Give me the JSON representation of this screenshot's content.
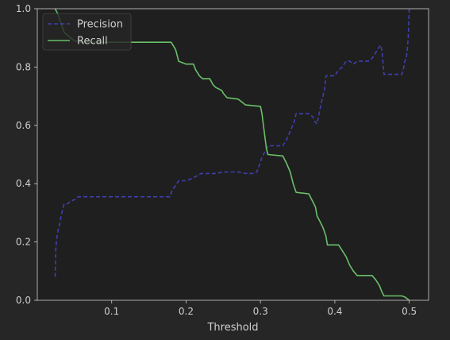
{
  "chart_data": {
    "type": "line",
    "title": "",
    "xlabel": "Threshold",
    "ylabel": "",
    "xlim": [
      0.0,
      0.526
    ],
    "ylim": [
      0.0,
      1.0
    ],
    "xticks": [
      0.1,
      0.2,
      0.3,
      0.4,
      0.5
    ],
    "xtick_labels": [
      "0.1",
      "0.2",
      "0.3",
      "0.4",
      "0.5"
    ],
    "yticks": [
      0.0,
      0.2,
      0.4,
      0.6,
      0.8,
      1.0
    ],
    "ytick_labels": [
      "0.0",
      "0.2",
      "0.4",
      "0.6",
      "0.8",
      "1.0"
    ],
    "grid": false,
    "legend": "upper-left",
    "series": [
      {
        "name": "Precision",
        "color": "#3f3fb2",
        "style": "dashed",
        "points": [
          [
            0.024,
            0.08
          ],
          [
            0.025,
            0.18
          ],
          [
            0.026,
            0.21
          ],
          [
            0.028,
            0.24
          ],
          [
            0.03,
            0.26
          ],
          [
            0.032,
            0.29
          ],
          [
            0.034,
            0.31
          ],
          [
            0.036,
            0.33
          ],
          [
            0.04,
            0.33
          ],
          [
            0.045,
            0.34
          ],
          [
            0.05,
            0.345
          ],
          [
            0.055,
            0.355
          ],
          [
            0.07,
            0.355
          ],
          [
            0.1,
            0.355
          ],
          [
            0.15,
            0.355
          ],
          [
            0.178,
            0.355
          ],
          [
            0.182,
            0.38
          ],
          [
            0.185,
            0.39
          ],
          [
            0.19,
            0.41
          ],
          [
            0.2,
            0.41
          ],
          [
            0.21,
            0.42
          ],
          [
            0.22,
            0.435
          ],
          [
            0.24,
            0.435
          ],
          [
            0.25,
            0.44
          ],
          [
            0.27,
            0.44
          ],
          [
            0.28,
            0.435
          ],
          [
            0.292,
            0.435
          ],
          [
            0.295,
            0.44
          ],
          [
            0.298,
            0.46
          ],
          [
            0.302,
            0.49
          ],
          [
            0.306,
            0.51
          ],
          [
            0.31,
            0.53
          ],
          [
            0.33,
            0.53
          ],
          [
            0.335,
            0.55
          ],
          [
            0.34,
            0.58
          ],
          [
            0.345,
            0.61
          ],
          [
            0.348,
            0.64
          ],
          [
            0.365,
            0.64
          ],
          [
            0.37,
            0.63
          ],
          [
            0.374,
            0.61
          ],
          [
            0.376,
            0.605
          ],
          [
            0.378,
            0.63
          ],
          [
            0.382,
            0.68
          ],
          [
            0.386,
            0.72
          ],
          [
            0.388,
            0.77
          ],
          [
            0.4,
            0.77
          ],
          [
            0.405,
            0.79
          ],
          [
            0.41,
            0.8
          ],
          [
            0.415,
            0.82
          ],
          [
            0.42,
            0.82
          ],
          [
            0.425,
            0.81
          ],
          [
            0.43,
            0.82
          ],
          [
            0.445,
            0.82
          ],
          [
            0.45,
            0.83
          ],
          [
            0.455,
            0.85
          ],
          [
            0.46,
            0.87
          ],
          [
            0.462,
            0.875
          ],
          [
            0.464,
            0.84
          ],
          [
            0.466,
            0.775
          ],
          [
            0.49,
            0.775
          ],
          [
            0.492,
            0.79
          ],
          [
            0.494,
            0.82
          ],
          [
            0.496,
            0.83
          ],
          [
            0.497,
            0.85
          ],
          [
            0.498,
            0.88
          ],
          [
            0.499,
            0.92
          ],
          [
            0.5,
            1.0
          ]
        ]
      },
      {
        "name": "Recall",
        "color": "#6abf69",
        "style": "solid",
        "points": [
          [
            0.024,
            1.0
          ],
          [
            0.028,
            0.98
          ],
          [
            0.032,
            0.95
          ],
          [
            0.036,
            0.92
          ],
          [
            0.04,
            0.91
          ],
          [
            0.045,
            0.9
          ],
          [
            0.05,
            0.89
          ],
          [
            0.06,
            0.885
          ],
          [
            0.1,
            0.885
          ],
          [
            0.15,
            0.885
          ],
          [
            0.18,
            0.885
          ],
          [
            0.186,
            0.86
          ],
          [
            0.19,
            0.82
          ],
          [
            0.2,
            0.81
          ],
          [
            0.21,
            0.81
          ],
          [
            0.213,
            0.79
          ],
          [
            0.218,
            0.77
          ],
          [
            0.222,
            0.76
          ],
          [
            0.232,
            0.76
          ],
          [
            0.236,
            0.74
          ],
          [
            0.24,
            0.73
          ],
          [
            0.248,
            0.72
          ],
          [
            0.25,
            0.71
          ],
          [
            0.255,
            0.695
          ],
          [
            0.27,
            0.69
          ],
          [
            0.275,
            0.68
          ],
          [
            0.28,
            0.67
          ],
          [
            0.3,
            0.665
          ],
          [
            0.302,
            0.64
          ],
          [
            0.304,
            0.6
          ],
          [
            0.306,
            0.56
          ],
          [
            0.308,
            0.52
          ],
          [
            0.31,
            0.5
          ],
          [
            0.33,
            0.495
          ],
          [
            0.335,
            0.47
          ],
          [
            0.34,
            0.44
          ],
          [
            0.344,
            0.4
          ],
          [
            0.348,
            0.37
          ],
          [
            0.365,
            0.365
          ],
          [
            0.37,
            0.34
          ],
          [
            0.374,
            0.32
          ],
          [
            0.376,
            0.29
          ],
          [
            0.38,
            0.27
          ],
          [
            0.384,
            0.25
          ],
          [
            0.388,
            0.22
          ],
          [
            0.39,
            0.19
          ],
          [
            0.405,
            0.19
          ],
          [
            0.41,
            0.17
          ],
          [
            0.415,
            0.15
          ],
          [
            0.42,
            0.12
          ],
          [
            0.425,
            0.1
          ],
          [
            0.43,
            0.085
          ],
          [
            0.45,
            0.085
          ],
          [
            0.455,
            0.07
          ],
          [
            0.46,
            0.05
          ],
          [
            0.463,
            0.03
          ],
          [
            0.466,
            0.015
          ],
          [
            0.49,
            0.015
          ],
          [
            0.495,
            0.01
          ],
          [
            0.5,
            0.0
          ]
        ]
      }
    ]
  }
}
